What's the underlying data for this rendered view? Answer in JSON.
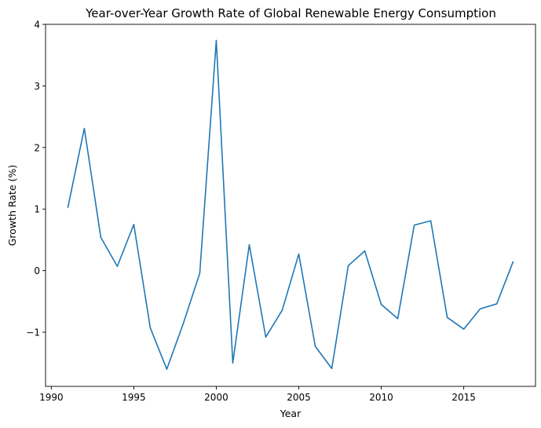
{
  "chart_data": {
    "type": "line",
    "title": "Year-over-Year Growth Rate of Global Renewable Energy Consumption",
    "xlabel": "Year",
    "ylabel": "Growth Rate (%)",
    "xlim": [
      1989.65,
      2019.35
    ],
    "ylim": [
      -1.88,
      4.0
    ],
    "xticks": [
      1990,
      1995,
      2000,
      2005,
      2010,
      2015
    ],
    "xtick_labels": [
      "1990",
      "1995",
      "2000",
      "2005",
      "2010",
      "2015"
    ],
    "yticks": [
      -1,
      0,
      1,
      2,
      3,
      4
    ],
    "ytick_labels": [
      "−1",
      "0",
      "1",
      "2",
      "3",
      "4"
    ],
    "grid": false,
    "legend": "none",
    "series": [
      {
        "color": "#1f77b4",
        "x": [
          1991,
          1992,
          1993,
          1994,
          1995,
          1996,
          1997,
          1998,
          1999,
          2000,
          2001,
          2002,
          2003,
          2004,
          2005,
          2006,
          2007,
          2008,
          2009,
          2010,
          2011,
          2012,
          2013,
          2014,
          2015,
          2016,
          2017,
          2018
        ],
        "y": [
          1.02,
          2.31,
          0.54,
          0.07,
          0.75,
          -0.93,
          -1.6,
          -0.86,
          -0.04,
          3.74,
          -1.5,
          0.42,
          -1.08,
          -0.64,
          0.27,
          -1.23,
          -1.59,
          0.08,
          0.32,
          -0.55,
          -0.78,
          0.74,
          0.81,
          -0.76,
          -0.95,
          -0.62,
          -0.54,
          0.15
        ]
      }
    ]
  }
}
